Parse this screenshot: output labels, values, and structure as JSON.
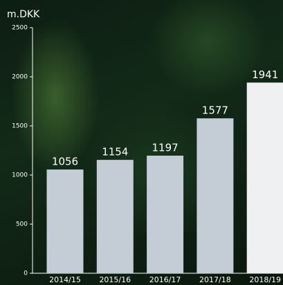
{
  "chart_data": {
    "type": "bar",
    "y_axis_label": "m.DKK",
    "categories": [
      "2014/15",
      "2015/16",
      "2016/17",
      "2017/18",
      "2018/19"
    ],
    "values": [
      1056,
      1154,
      1197,
      1577,
      1941
    ],
    "colors": [
      "#c4cdd5",
      "#c4cdd5",
      "#c4cdd5",
      "#c4cdd5",
      "#eef0f2"
    ],
    "ylim": [
      0,
      2500
    ],
    "yticks": [
      0,
      500,
      1000,
      1500,
      2000,
      2500
    ],
    "grid": false
  }
}
